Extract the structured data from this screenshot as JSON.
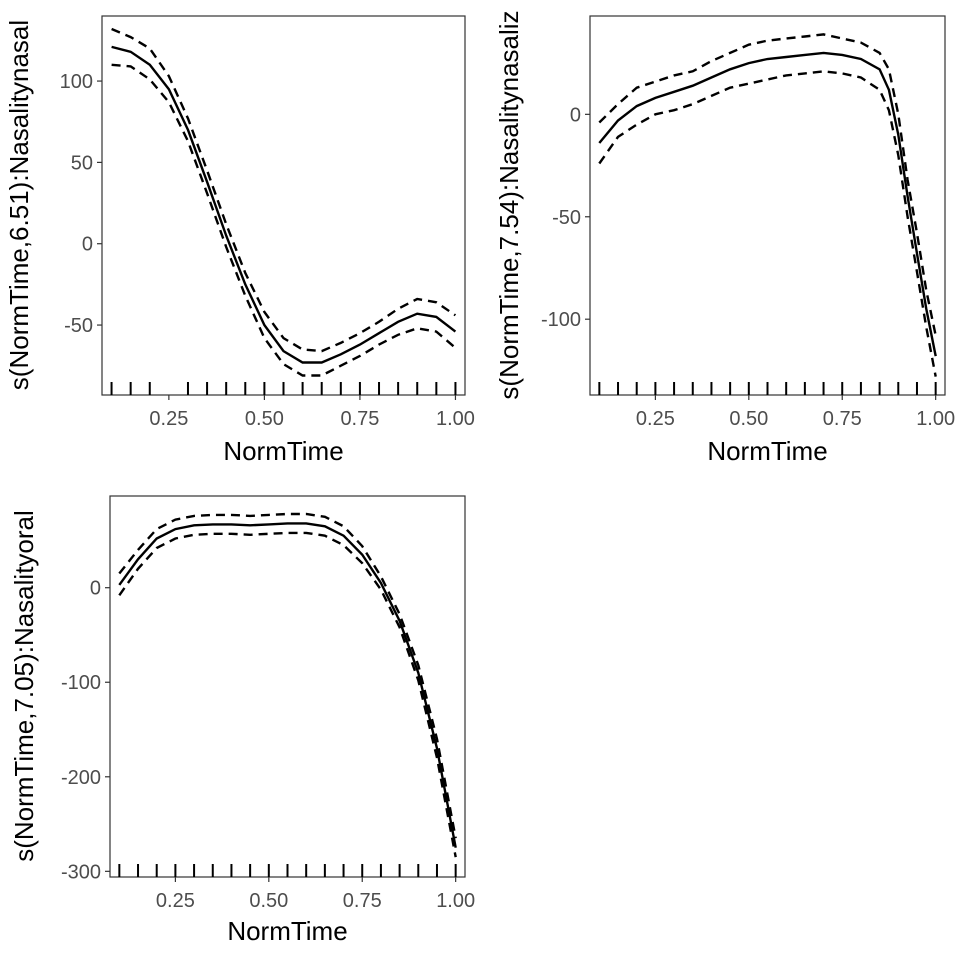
{
  "colors": {
    "background": "#ffffff",
    "line": "#000000",
    "frame": "#333333",
    "tick_text": "#4d4d4d"
  },
  "chart_data": [
    {
      "type": "line",
      "xlabel": "NormTime",
      "ylabel": "s(NormTime,6.51):Nasalitynasal",
      "xlim": [
        0.075,
        1.025
      ],
      "ylim": [
        -93,
        140
      ],
      "x_ticks": [
        0.25,
        0.5,
        0.75,
        1.0
      ],
      "x_tick_labels": [
        "0.25",
        "0.50",
        "0.75",
        "1.00"
      ],
      "y_ticks": [
        100,
        50,
        0,
        -50
      ],
      "y_tick_labels": [
        "100",
        "50",
        "0",
        "-50"
      ],
      "rug": [
        0.1,
        0.15,
        0.2,
        0.3,
        0.35,
        0.4,
        0.45,
        0.5,
        0.55,
        0.6,
        0.65,
        0.7,
        0.75,
        0.8,
        0.85,
        0.9,
        0.95,
        1.0
      ],
      "grid": false,
      "legend": "none",
      "x": [
        0.1,
        0.15,
        0.2,
        0.25,
        0.3,
        0.35,
        0.4,
        0.45,
        0.5,
        0.55,
        0.6,
        0.65,
        0.7,
        0.75,
        0.8,
        0.85,
        0.9,
        0.95,
        1.0
      ],
      "series": [
        {
          "role": "fit",
          "style": "solid",
          "values": [
            121,
            118,
            110,
            95,
            70,
            38,
            5,
            -25,
            -50,
            -66,
            -73,
            -73,
            -68,
            -62,
            -55,
            -48,
            -43,
            -45,
            -54
          ]
        },
        {
          "role": "upper",
          "style": "dashed",
          "values": [
            132,
            127,
            120,
            103,
            77,
            45,
            12,
            -18,
            -42,
            -58,
            -65,
            -66,
            -61,
            -55,
            -48,
            -40,
            -34,
            -36,
            -44
          ]
        },
        {
          "role": "lower",
          "style": "dashed",
          "values": [
            110,
            109,
            101,
            87,
            63,
            31,
            -2,
            -32,
            -58,
            -74,
            -81,
            -81,
            -75,
            -69,
            -62,
            -56,
            -52,
            -54,
            -64
          ]
        }
      ]
    },
    {
      "type": "line",
      "xlabel": "NormTime",
      "ylabel": "s(NormTime,7.54):Nasalitynasaliz",
      "xlim": [
        0.075,
        1.025
      ],
      "ylim": [
        -137,
        48
      ],
      "x_ticks": [
        0.25,
        0.5,
        0.75,
        1.0
      ],
      "x_tick_labels": [
        "0.25",
        "0.50",
        "0.75",
        "1.00"
      ],
      "y_ticks": [
        0,
        -50,
        -100
      ],
      "y_tick_labels": [
        "0",
        "-50",
        "-100"
      ],
      "rug": [
        0.1,
        0.15,
        0.2,
        0.25,
        0.3,
        0.35,
        0.4,
        0.45,
        0.5,
        0.55,
        0.6,
        0.65,
        0.7,
        0.75,
        0.8,
        0.85,
        0.9,
        0.95,
        1.0
      ],
      "grid": false,
      "legend": "none",
      "x": [
        0.1,
        0.15,
        0.2,
        0.25,
        0.3,
        0.35,
        0.4,
        0.45,
        0.5,
        0.55,
        0.6,
        0.65,
        0.7,
        0.75,
        0.8,
        0.85,
        0.875,
        0.9,
        0.925,
        0.95,
        0.975,
        1.0
      ],
      "series": [
        {
          "role": "fit",
          "style": "solid",
          "values": [
            -14,
            -3,
            4,
            8,
            11,
            14,
            18,
            22,
            25,
            27,
            28,
            29,
            30,
            29,
            27,
            22,
            12,
            -10,
            -40,
            -68,
            -95,
            -118
          ]
        },
        {
          "role": "upper",
          "style": "dashed",
          "values": [
            -4,
            5,
            13,
            16,
            19,
            21,
            26,
            30,
            34,
            36,
            37,
            38,
            39,
            37,
            35,
            30,
            22,
            0,
            -32,
            -58,
            -86,
            -108
          ]
        },
        {
          "role": "lower",
          "style": "dashed",
          "values": [
            -24,
            -11,
            -5,
            0,
            2,
            5,
            9,
            13,
            15,
            17,
            19,
            20,
            21,
            20,
            18,
            12,
            2,
            -20,
            -50,
            -77,
            -104,
            -128
          ]
        }
      ]
    },
    {
      "type": "line",
      "xlabel": "NormTime",
      "ylabel": "s(NormTime,7.05):Nasalityoral",
      "xlim": [
        0.075,
        1.025
      ],
      "ylim": [
        -306,
        97
      ],
      "x_ticks": [
        0.25,
        0.5,
        0.75,
        1.0
      ],
      "x_tick_labels": [
        "0.25",
        "0.50",
        "0.75",
        "1.00"
      ],
      "y_ticks": [
        0,
        -100,
        -200,
        -300
      ],
      "y_tick_labels": [
        "0",
        "-100",
        "-200",
        "-300"
      ],
      "rug": [
        0.1,
        0.15,
        0.2,
        0.25,
        0.3,
        0.35,
        0.4,
        0.45,
        0.5,
        0.55,
        0.6,
        0.65,
        0.7,
        0.75,
        0.8,
        0.85,
        0.9,
        0.95,
        1.0
      ],
      "grid": false,
      "legend": "none",
      "x": [
        0.1,
        0.15,
        0.2,
        0.25,
        0.3,
        0.35,
        0.4,
        0.45,
        0.5,
        0.55,
        0.6,
        0.65,
        0.7,
        0.75,
        0.8,
        0.85,
        0.9,
        0.95,
        1.0
      ],
      "series": [
        {
          "role": "fit",
          "style": "solid",
          "values": [
            3,
            30,
            52,
            62,
            66,
            67,
            67,
            66,
            67,
            68,
            68,
            65,
            55,
            35,
            5,
            -35,
            -90,
            -170,
            -275
          ]
        },
        {
          "role": "upper",
          "style": "dashed",
          "values": [
            15,
            40,
            62,
            72,
            76,
            77,
            77,
            76,
            77,
            78,
            78,
            75,
            65,
            44,
            12,
            -28,
            -82,
            -160,
            -265
          ]
        },
        {
          "role": "lower",
          "style": "dashed",
          "values": [
            -8,
            20,
            42,
            52,
            56,
            57,
            57,
            56,
            57,
            58,
            58,
            55,
            45,
            26,
            -2,
            -42,
            -98,
            -180,
            -285
          ]
        }
      ]
    }
  ]
}
